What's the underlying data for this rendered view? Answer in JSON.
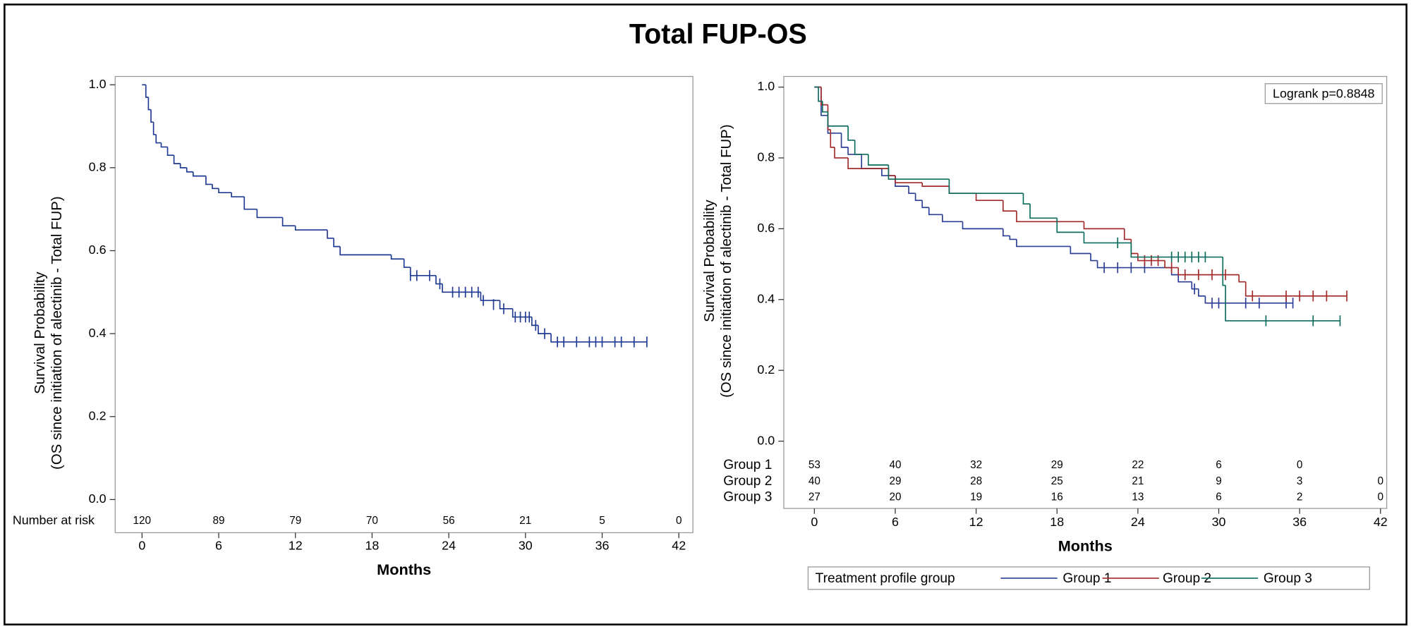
{
  "title": "Total FUP-OS",
  "chart_data": [
    {
      "type": "km",
      "xlabel": "Months",
      "ylabel": [
        "Survival Probability",
        "(OS since initiation of alectinib - Total FUP)"
      ],
      "xlim": [
        -2.1,
        43.1
      ],
      "ylim": [
        -0.08,
        1.02
      ],
      "xticks": [
        0,
        6,
        12,
        18,
        24,
        30,
        36,
        42
      ],
      "yticks": [
        {
          "value": 0,
          "label": "0.0"
        },
        0.2,
        0.4,
        0.6,
        0.8,
        {
          "value": 1,
          "label": "1.0"
        }
      ],
      "risk_label": "Number at risk",
      "series": [
        {
          "color": "#1f3a93",
          "x": [
            0,
            0.3,
            0.5,
            0.7,
            0.9,
            1.1,
            1.5,
            2,
            2.5,
            3,
            3.5,
            4,
            5,
            5.5,
            6,
            7,
            8,
            9,
            11,
            12,
            14.5,
            15,
            15.5,
            19.5,
            20.5,
            21,
            23,
            23.5,
            26.5,
            28,
            29,
            30.5,
            31,
            32,
            39.5
          ],
          "values": [
            1,
            0.97,
            0.94,
            0.91,
            0.88,
            0.86,
            0.85,
            0.83,
            0.81,
            0.8,
            0.79,
            0.78,
            0.76,
            0.75,
            0.74,
            0.73,
            0.7,
            0.68,
            0.66,
            0.65,
            0.63,
            0.61,
            0.59,
            0.58,
            0.56,
            0.54,
            0.52,
            0.5,
            0.48,
            0.46,
            0.44,
            0.42,
            0.4,
            0.38,
            0.38
          ],
          "censor_x": [
            21,
            21.5,
            22.5,
            23.3,
            24.3,
            24.8,
            25.3,
            25.8,
            26.3,
            26.7,
            27.5,
            28.3,
            29.2,
            29.6,
            30,
            30.3,
            30.8,
            31.5,
            32.5,
            33,
            34,
            35,
            35.5,
            36,
            37,
            37.5,
            38.5,
            39.5
          ],
          "censor_y": [
            0.54,
            0.54,
            0.54,
            0.52,
            0.5,
            0.5,
            0.5,
            0.5,
            0.5,
            0.48,
            0.47,
            0.46,
            0.44,
            0.44,
            0.44,
            0.44,
            0.42,
            0.4,
            0.38,
            0.38,
            0.38,
            0.38,
            0.38,
            0.38,
            0.38,
            0.38,
            0.38,
            0.38
          ],
          "at_risk": [
            120,
            89,
            79,
            70,
            56,
            21,
            5,
            0
          ]
        }
      ]
    },
    {
      "type": "km",
      "xlabel": "Months",
      "ylabel": [
        "Survival Probability",
        "(OS since initiation of alectinib - Total FUP)"
      ],
      "xlim": [
        -2.27,
        42.46
      ],
      "ylim": [
        -0.19,
        1.03
      ],
      "xticks": [
        0,
        6,
        12,
        18,
        24,
        30,
        36,
        42
      ],
      "yticks": [
        {
          "value": 0,
          "label": "0.0"
        },
        0.2,
        0.4,
        0.6,
        0.8,
        {
          "value": 1,
          "label": "1.0"
        }
      ],
      "annotation": "Logrank p=0.8848",
      "legend_title": "Treatment profile group",
      "series": [
        {
          "name": "Group 1",
          "color": "#2b3d96",
          "x": [
            0,
            0.5,
            1,
            2,
            2.5,
            3.5,
            5,
            6,
            7,
            7.5,
            8,
            8.5,
            9.5,
            11,
            14,
            14.5,
            15,
            19,
            20.5,
            21,
            26.5,
            27,
            28,
            28.5,
            29,
            35.5
          ],
          "values": [
            1,
            0.92,
            0.87,
            0.83,
            0.81,
            0.77,
            0.75,
            0.72,
            0.7,
            0.68,
            0.66,
            0.64,
            0.62,
            0.6,
            0.58,
            0.57,
            0.55,
            0.53,
            0.51,
            0.49,
            0.47,
            0.45,
            0.43,
            0.41,
            0.39,
            0.39
          ],
          "censor_x": [
            21.5,
            22.5,
            23.5,
            24.5,
            28.2,
            29.5,
            30,
            32,
            33,
            35,
            35.5
          ],
          "censor_y": [
            0.49,
            0.49,
            0.49,
            0.49,
            0.43,
            0.39,
            0.39,
            0.39,
            0.39,
            0.39,
            0.39
          ],
          "at_risk": [
            53,
            40,
            32,
            29,
            22,
            6,
            0,
            null
          ]
        },
        {
          "name": "Group 2",
          "color": "#a32a2a",
          "x": [
            0,
            0.5,
            1,
            1.2,
            1.5,
            2.5,
            5.5,
            6,
            8,
            10,
            12,
            14,
            15,
            20,
            23,
            23.5,
            24,
            26,
            27,
            31.5,
            32,
            39.5
          ],
          "values": [
            1,
            0.95,
            0.88,
            0.83,
            0.8,
            0.77,
            0.75,
            0.73,
            0.72,
            0.7,
            0.68,
            0.65,
            0.62,
            0.6,
            0.57,
            0.53,
            0.51,
            0.49,
            0.47,
            0.45,
            0.41,
            0.41
          ],
          "censor_x": [
            24.5,
            25,
            25.5,
            26.5,
            27.5,
            28.5,
            29.5,
            30.5,
            32.5,
            35,
            36,
            37,
            38,
            39.5
          ],
          "censor_y": [
            0.51,
            0.51,
            0.51,
            0.49,
            0.47,
            0.47,
            0.47,
            0.47,
            0.41,
            0.41,
            0.41,
            0.41,
            0.41,
            0.41
          ],
          "at_risk": [
            40,
            29,
            28,
            25,
            21,
            9,
            3,
            0
          ]
        },
        {
          "name": "Group 3",
          "color": "#0b6b5c",
          "x": [
            0,
            0.3,
            0.6,
            1,
            2.5,
            3,
            4,
            5.5,
            10,
            15.5,
            16,
            18,
            20,
            23.5,
            30.3,
            30.5,
            39
          ],
          "values": [
            1,
            0.96,
            0.93,
            0.89,
            0.85,
            0.81,
            0.78,
            0.74,
            0.7,
            0.67,
            0.63,
            0.59,
            0.56,
            0.52,
            0.44,
            0.34,
            0.34
          ],
          "censor_x": [
            22.5,
            26.5,
            27,
            27.5,
            28,
            28.5,
            29,
            33.5,
            37,
            39
          ],
          "censor_y": [
            0.56,
            0.52,
            0.52,
            0.52,
            0.52,
            0.52,
            0.52,
            0.34,
            0.34,
            0.34
          ],
          "at_risk": [
            27,
            20,
            19,
            16,
            13,
            6,
            2,
            0
          ]
        }
      ]
    }
  ]
}
